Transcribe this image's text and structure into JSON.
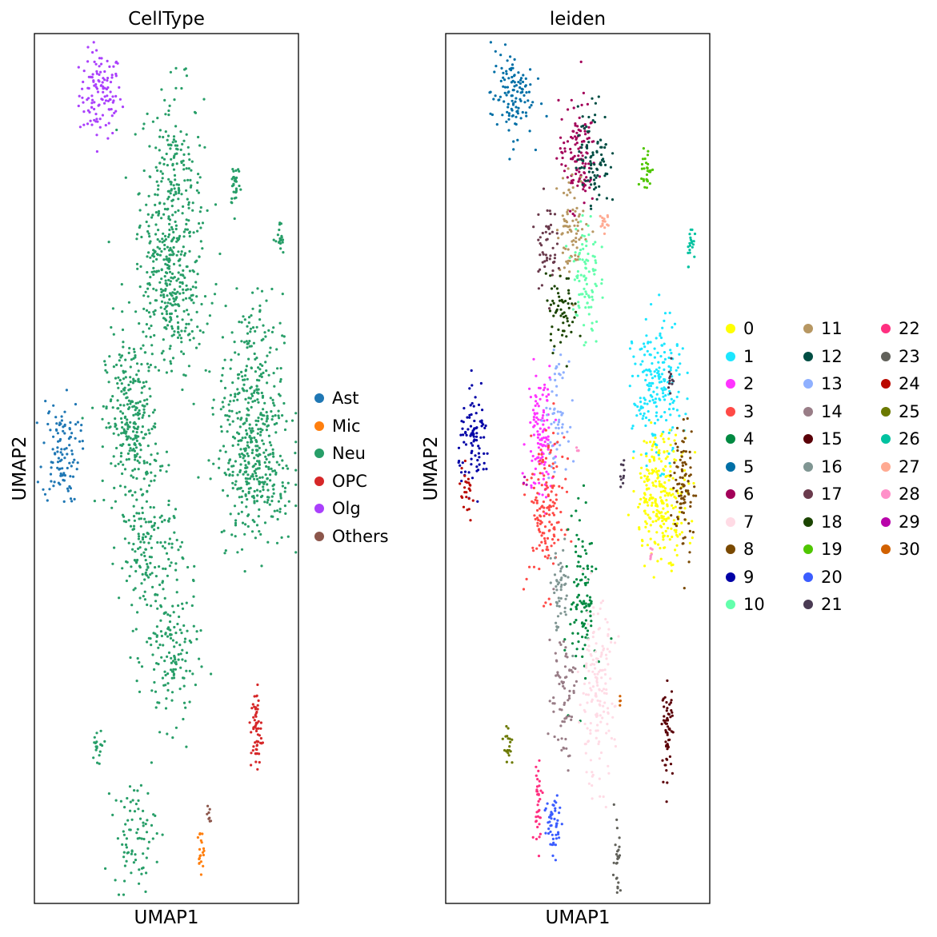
{
  "chart_data": [
    {
      "type": "scatter",
      "title": "CellType",
      "xlabel": "UMAP1",
      "ylabel": "UMAP2",
      "grid": false,
      "legend_position": "right",
      "legend": [
        {
          "label": "Ast",
          "color": "#1f77b4"
        },
        {
          "label": "Mic",
          "color": "#ff7f0e"
        },
        {
          "label": "Neu",
          "color": "#279e68"
        },
        {
          "label": "OPC",
          "color": "#d62728"
        },
        {
          "label": "Olg",
          "color": "#aa40fc"
        },
        {
          "label": "Others",
          "color": "#8c564b"
        }
      ],
      "clusters": [
        {
          "label": "Olg",
          "cx": 0.25,
          "cy": 0.93,
          "sx": 0.04,
          "sy": 0.025,
          "n": 120
        },
        {
          "label": "Neu",
          "cx": 0.52,
          "cy": 0.82,
          "sx": 0.06,
          "sy": 0.06,
          "n": 240
        },
        {
          "label": "Neu",
          "cx": 0.51,
          "cy": 0.72,
          "sx": 0.08,
          "sy": 0.04,
          "n": 160
        },
        {
          "label": "Neu",
          "cx": 0.53,
          "cy": 0.68,
          "sx": 0.05,
          "sy": 0.04,
          "n": 120
        },
        {
          "label": "Neu",
          "cx": 0.76,
          "cy": 0.83,
          "sx": 0.01,
          "sy": 0.015,
          "n": 30
        },
        {
          "label": "Neu",
          "cx": 0.93,
          "cy": 0.76,
          "sx": 0.008,
          "sy": 0.012,
          "n": 20
        },
        {
          "label": "Ast",
          "cx": 0.1,
          "cy": 0.52,
          "sx": 0.035,
          "sy": 0.03,
          "n": 110
        },
        {
          "label": "Neu",
          "cx": 0.37,
          "cy": 0.55,
          "sx": 0.05,
          "sy": 0.05,
          "n": 300
        },
        {
          "label": "Neu",
          "cx": 0.44,
          "cy": 0.4,
          "sx": 0.06,
          "sy": 0.04,
          "n": 160
        },
        {
          "label": "Neu",
          "cx": 0.52,
          "cy": 0.28,
          "sx": 0.05,
          "sy": 0.04,
          "n": 140
        },
        {
          "label": "Neu",
          "cx": 0.82,
          "cy": 0.58,
          "sx": 0.06,
          "sy": 0.06,
          "n": 300
        },
        {
          "label": "Neu",
          "cx": 0.84,
          "cy": 0.49,
          "sx": 0.07,
          "sy": 0.04,
          "n": 220
        },
        {
          "label": "Neu",
          "cx": 0.24,
          "cy": 0.18,
          "sx": 0.02,
          "sy": 0.012,
          "n": 20
        },
        {
          "label": "Neu",
          "cx": 0.38,
          "cy": 0.08,
          "sx": 0.04,
          "sy": 0.03,
          "n": 80
        },
        {
          "label": "OPC",
          "cx": 0.84,
          "cy": 0.2,
          "sx": 0.01,
          "sy": 0.025,
          "n": 60
        },
        {
          "label": "Mic",
          "cx": 0.63,
          "cy": 0.06,
          "sx": 0.006,
          "sy": 0.012,
          "n": 20
        },
        {
          "label": "Others",
          "cx": 0.66,
          "cy": 0.1,
          "sx": 0.004,
          "sy": 0.008,
          "n": 8
        }
      ]
    },
    {
      "type": "scatter",
      "title": "leiden",
      "xlabel": "UMAP1",
      "ylabel": "UMAP2",
      "grid": false,
      "legend_position": "right",
      "legend": [
        {
          "label": "0",
          "color": "#ffff00"
        },
        {
          "label": "1",
          "color": "#1ce6ff"
        },
        {
          "label": "2",
          "color": "#ff34ff"
        },
        {
          "label": "3",
          "color": "#ff4a46"
        },
        {
          "label": "4",
          "color": "#008941"
        },
        {
          "label": "5",
          "color": "#006fa6"
        },
        {
          "label": "6",
          "color": "#a30059"
        },
        {
          "label": "7",
          "color": "#ffdbe5"
        },
        {
          "label": "8",
          "color": "#7a4900"
        },
        {
          "label": "9",
          "color": "#0000a6"
        },
        {
          "label": "10",
          "color": "#63ffac"
        },
        {
          "label": "11",
          "color": "#b79762"
        },
        {
          "label": "12",
          "color": "#004d43"
        },
        {
          "label": "13",
          "color": "#8fb0ff"
        },
        {
          "label": "14",
          "color": "#997d87"
        },
        {
          "label": "15",
          "color": "#5a0007"
        },
        {
          "label": "16",
          "color": "#809693"
        },
        {
          "label": "17",
          "color": "#6a3a4c"
        },
        {
          "label": "18",
          "color": "#1b4400"
        },
        {
          "label": "19",
          "color": "#4fc601"
        },
        {
          "label": "20",
          "color": "#3b5dff"
        },
        {
          "label": "21",
          "color": "#4a3b53"
        },
        {
          "label": "22",
          "color": "#ff2f80"
        },
        {
          "label": "23",
          "color": "#61615a"
        },
        {
          "label": "24",
          "color": "#ba0900"
        },
        {
          "label": "25",
          "color": "#6b7900"
        },
        {
          "label": "26",
          "color": "#00c2a0"
        },
        {
          "label": "27",
          "color": "#ffaa92"
        },
        {
          "label": "28",
          "color": "#ff90c9"
        },
        {
          "label": "29",
          "color": "#b903aa"
        },
        {
          "label": "30",
          "color": "#d16100"
        }
      ],
      "clusters": [
        {
          "label": "5",
          "cx": 0.25,
          "cy": 0.93,
          "sx": 0.04,
          "sy": 0.025,
          "n": 120
        },
        {
          "label": "6",
          "cx": 0.5,
          "cy": 0.86,
          "sx": 0.035,
          "sy": 0.03,
          "n": 120
        },
        {
          "label": "12",
          "cx": 0.56,
          "cy": 0.86,
          "sx": 0.03,
          "sy": 0.03,
          "n": 90
        },
        {
          "label": "11",
          "cx": 0.48,
          "cy": 0.78,
          "sx": 0.03,
          "sy": 0.03,
          "n": 80
        },
        {
          "label": "17",
          "cx": 0.38,
          "cy": 0.76,
          "sx": 0.02,
          "sy": 0.025,
          "n": 50
        },
        {
          "label": "10",
          "cx": 0.53,
          "cy": 0.72,
          "sx": 0.025,
          "sy": 0.04,
          "n": 90
        },
        {
          "label": "18",
          "cx": 0.44,
          "cy": 0.68,
          "sx": 0.03,
          "sy": 0.02,
          "n": 60
        },
        {
          "label": "27",
          "cx": 0.6,
          "cy": 0.78,
          "sx": 0.01,
          "sy": 0.01,
          "n": 15
        },
        {
          "label": "19",
          "cx": 0.76,
          "cy": 0.84,
          "sx": 0.01,
          "sy": 0.015,
          "n": 30
        },
        {
          "label": "26",
          "cx": 0.93,
          "cy": 0.76,
          "sx": 0.008,
          "sy": 0.012,
          "n": 20
        },
        {
          "label": "9",
          "cx": 0.11,
          "cy": 0.53,
          "sx": 0.03,
          "sy": 0.025,
          "n": 90
        },
        {
          "label": "24",
          "cx": 0.08,
          "cy": 0.47,
          "sx": 0.015,
          "sy": 0.015,
          "n": 25
        },
        {
          "label": "2",
          "cx": 0.36,
          "cy": 0.54,
          "sx": 0.025,
          "sy": 0.04,
          "n": 120
        },
        {
          "label": "13",
          "cx": 0.42,
          "cy": 0.56,
          "sx": 0.02,
          "sy": 0.03,
          "n": 60
        },
        {
          "label": "3",
          "cx": 0.38,
          "cy": 0.45,
          "sx": 0.035,
          "sy": 0.045,
          "n": 150
        },
        {
          "label": "16",
          "cx": 0.43,
          "cy": 0.36,
          "sx": 0.02,
          "sy": 0.025,
          "n": 50
        },
        {
          "label": "4",
          "cx": 0.52,
          "cy": 0.35,
          "sx": 0.025,
          "sy": 0.05,
          "n": 110
        },
        {
          "label": "1",
          "cx": 0.8,
          "cy": 0.59,
          "sx": 0.045,
          "sy": 0.04,
          "n": 200
        },
        {
          "label": "21",
          "cx": 0.85,
          "cy": 0.6,
          "sx": 0.006,
          "sy": 0.012,
          "n": 12
        },
        {
          "label": "0",
          "cx": 0.82,
          "cy": 0.47,
          "sx": 0.05,
          "sy": 0.035,
          "n": 260
        },
        {
          "label": "8",
          "cx": 0.9,
          "cy": 0.48,
          "sx": 0.02,
          "sy": 0.04,
          "n": 90
        },
        {
          "label": "21",
          "cx": 0.67,
          "cy": 0.5,
          "sx": 0.006,
          "sy": 0.012,
          "n": 10
        },
        {
          "label": "28",
          "cx": 0.78,
          "cy": 0.4,
          "sx": 0.005,
          "sy": 0.006,
          "n": 6
        },
        {
          "label": "28",
          "cx": 0.5,
          "cy": 0.52,
          "sx": 0.004,
          "sy": 0.004,
          "n": 4
        },
        {
          "label": "29",
          "cx": 0.3,
          "cy": 0.49,
          "sx": 0.004,
          "sy": 0.004,
          "n": 3
        },
        {
          "label": "14",
          "cx": 0.44,
          "cy": 0.24,
          "sx": 0.025,
          "sy": 0.04,
          "n": 70
        },
        {
          "label": "7",
          "cx": 0.57,
          "cy": 0.24,
          "sx": 0.035,
          "sy": 0.05,
          "n": 160
        },
        {
          "label": "30",
          "cx": 0.66,
          "cy": 0.23,
          "sx": 0.004,
          "sy": 0.004,
          "n": 4
        },
        {
          "label": "15",
          "cx": 0.84,
          "cy": 0.2,
          "sx": 0.01,
          "sy": 0.025,
          "n": 60
        },
        {
          "label": "25",
          "cx": 0.24,
          "cy": 0.18,
          "sx": 0.01,
          "sy": 0.012,
          "n": 20
        },
        {
          "label": "22",
          "cx": 0.35,
          "cy": 0.12,
          "sx": 0.008,
          "sy": 0.025,
          "n": 35
        },
        {
          "label": "20",
          "cx": 0.41,
          "cy": 0.09,
          "sx": 0.018,
          "sy": 0.02,
          "n": 50
        },
        {
          "label": "23",
          "cx": 0.65,
          "cy": 0.06,
          "sx": 0.006,
          "sy": 0.025,
          "n": 25
        }
      ]
    }
  ]
}
